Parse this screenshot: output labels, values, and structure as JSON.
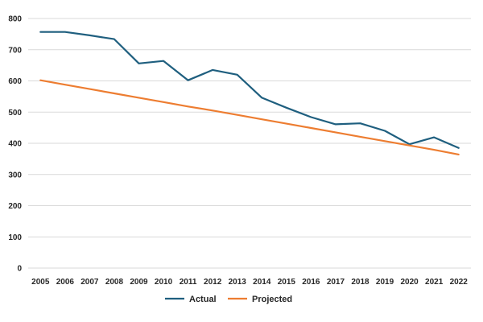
{
  "chart_data": {
    "type": "line",
    "title": "",
    "xlabel": "",
    "ylabel": "",
    "x": [
      "2005",
      "2006",
      "2007",
      "2008",
      "2009",
      "2010",
      "2011",
      "2012",
      "2013",
      "2014",
      "2015",
      "2016",
      "2017",
      "2018",
      "2019",
      "2020",
      "2021",
      "2022"
    ],
    "ylim": [
      0,
      800
    ],
    "yticks": [
      0,
      100,
      200,
      300,
      400,
      500,
      600,
      700,
      800
    ],
    "grid": true,
    "legend_position": "bottom",
    "series": [
      {
        "name": "Actual",
        "color": "#1f5f7f",
        "values": [
          757,
          757,
          746,
          734,
          656,
          664,
          602,
          635,
          620,
          546,
          514,
          484,
          461,
          464,
          440,
          397,
          419,
          385
        ]
      },
      {
        "name": "Projected",
        "color": "#ed7d31",
        "values": [
          602,
          588,
          574,
          560,
          546,
          532,
          518,
          505,
          491,
          477,
          463,
          449,
          435,
          421,
          407,
          393,
          379,
          364
        ]
      }
    ]
  }
}
